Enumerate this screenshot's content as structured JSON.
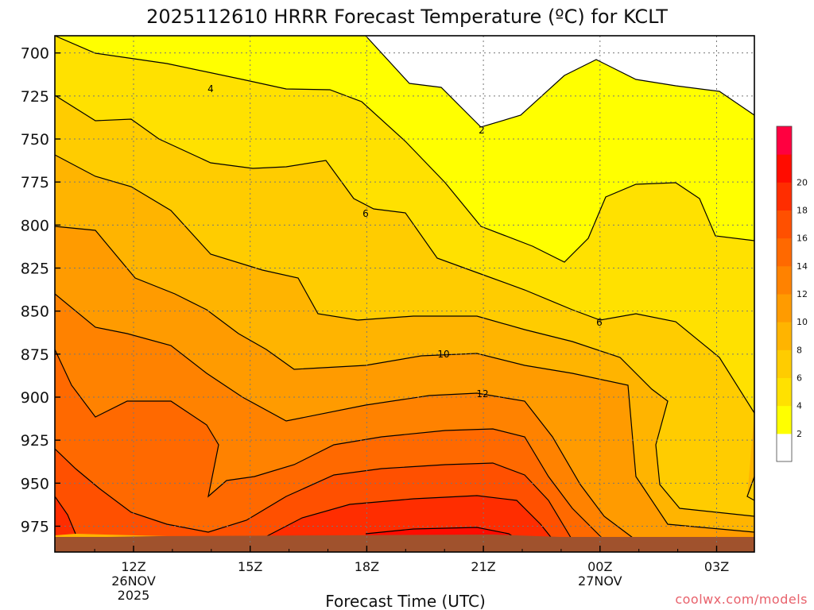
{
  "chart_data": {
    "type": "heatmap",
    "title": "2025112610 HRRR Forecast Temperature (ºC) for KCLT",
    "xlabel": "Forecast Time (UTC)",
    "ylabel": "",
    "units": "ºC",
    "x_ticks": [
      {
        "label": "12Z",
        "sub": "26NOV",
        "sub2": "2025"
      },
      {
        "label": "15Z",
        "sub": "",
        "sub2": ""
      },
      {
        "label": "18Z",
        "sub": "",
        "sub2": ""
      },
      {
        "label": "21Z",
        "sub": "",
        "sub2": ""
      },
      {
        "label": "00Z",
        "sub": "27NOV",
        "sub2": ""
      },
      {
        "label": "03Z",
        "sub": "",
        "sub2": ""
      }
    ],
    "y_ticks": [
      "700",
      "725",
      "750",
      "775",
      "800",
      "825",
      "850",
      "875",
      "900",
      "925",
      "950",
      "975"
    ],
    "y_levels_hpa": [
      700,
      725,
      750,
      775,
      800,
      825,
      850,
      875,
      900,
      925,
      950,
      975
    ],
    "ylim_hpa": [
      690,
      990
    ],
    "y_reversed": true,
    "grid": true,
    "colorbar": {
      "position": "right",
      "ticks": [
        "2",
        "4",
        "6",
        "8",
        "10",
        "12",
        "14",
        "16",
        "18",
        "20"
      ],
      "levels": [
        0,
        2,
        4,
        6,
        8,
        10,
        12,
        14,
        16,
        18,
        20,
        22
      ],
      "colors": [
        "#ffffff",
        "#ffff00",
        "#ffe100",
        "#ffcc00",
        "#ffb400",
        "#ff9b00",
        "#ff8200",
        "#ff6900",
        "#ff5000",
        "#ff2d00",
        "#ff0c00",
        "#ff0040"
      ]
    },
    "contour_labels": [
      "4",
      "2",
      "6",
      "6",
      "10",
      "12"
    ],
    "ground_color": "#a0522d"
  },
  "credit": "coolwx.com/models"
}
